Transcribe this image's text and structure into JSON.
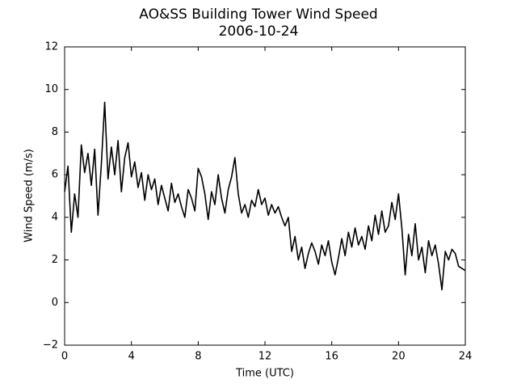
{
  "chart_data": {
    "type": "line",
    "title": "AO&SS Building Tower Wind Speed",
    "subtitle": "2006-10-24",
    "x_label": "Time (UTC)",
    "y_label": "Wind Speed (m/s)",
    "x": [
      0,
      0.2,
      0.4,
      0.6,
      0.8,
      1,
      1.2,
      1.4,
      1.6,
      1.8,
      2,
      2.2,
      2.4,
      2.6,
      2.8,
      3,
      3.2,
      3.4,
      3.6,
      3.8,
      4,
      4.2,
      4.4,
      4.6,
      4.8,
      5,
      5.2,
      5.4,
      5.6,
      5.8,
      6,
      6.2,
      6.4,
      6.6,
      6.8,
      7,
      7.2,
      7.4,
      7.6,
      7.8,
      8,
      8.2,
      8.4,
      8.6,
      8.8,
      9,
      9.2,
      9.4,
      9.6,
      9.8,
      10,
      10.2,
      10.4,
      10.6,
      10.8,
      11,
      11.2,
      11.4,
      11.6,
      11.8,
      12,
      12.2,
      12.4,
      12.6,
      12.8,
      13,
      13.2,
      13.4,
      13.6,
      13.8,
      14,
      14.2,
      14.4,
      14.6,
      14.8,
      15,
      15.2,
      15.4,
      15.6,
      15.8,
      16,
      16.2,
      16.4,
      16.6,
      16.8,
      17,
      17.2,
      17.4,
      17.6,
      17.8,
      18,
      18.2,
      18.4,
      18.6,
      18.8,
      19,
      19.2,
      19.4,
      19.6,
      19.8,
      20,
      20.2,
      20.4,
      20.6,
      20.8,
      21,
      21.2,
      21.4,
      21.6,
      21.8,
      22,
      22.2,
      22.4,
      22.6,
      22.8,
      23,
      23.2,
      23.4,
      23.6,
      23.8,
      24
    ],
    "series": [
      {
        "color": "#000000",
        "values": [
          5.2,
          6.4,
          3.3,
          5.1,
          4.0,
          7.4,
          6.1,
          7.0,
          5.5,
          7.2,
          4.1,
          6.5,
          9.4,
          5.8,
          7.3,
          6.0,
          7.6,
          5.2,
          6.8,
          7.5,
          5.9,
          6.6,
          5.4,
          6.1,
          4.8,
          6.0,
          5.3,
          5.8,
          4.6,
          5.5,
          4.9,
          4.3,
          5.6,
          4.7,
          5.1,
          4.5,
          4.0,
          5.3,
          4.9,
          4.3,
          6.3,
          5.9,
          5.1,
          3.9,
          5.2,
          4.6,
          6.0,
          4.9,
          4.2,
          5.3,
          5.9,
          6.8,
          5.1,
          4.2,
          4.6,
          4.0,
          4.8,
          4.5,
          5.3,
          4.6,
          4.9,
          4.1,
          4.6,
          4.2,
          4.5,
          4.0,
          3.6,
          4.0,
          2.4,
          3.1,
          2.0,
          2.6,
          1.6,
          2.3,
          2.8,
          2.4,
          1.8,
          2.7,
          2.2,
          2.9,
          1.9,
          1.3,
          2.1,
          3.0,
          2.2,
          3.3,
          2.6,
          3.5,
          2.7,
          3.1,
          2.5,
          3.6,
          2.9,
          4.1,
          3.2,
          4.3,
          3.3,
          3.6,
          4.7,
          3.9,
          5.1,
          3.5,
          1.3,
          3.2,
          2.2,
          3.7,
          2.0,
          2.6,
          1.4,
          2.9,
          2.2,
          2.7,
          1.8,
          0.6,
          2.4,
          2.0,
          2.5,
          2.3,
          1.7,
          1.6,
          1.5
        ]
      }
    ],
    "xlim": [
      0,
      24
    ],
    "xticks": [
      0,
      4,
      8,
      12,
      16,
      20,
      24
    ],
    "ylim": [
      -2,
      12
    ],
    "yticks": [
      {
        "value": -2,
        "label": "−2"
      },
      0,
      2,
      4,
      6,
      8,
      10,
      12
    ],
    "grid": false
  }
}
